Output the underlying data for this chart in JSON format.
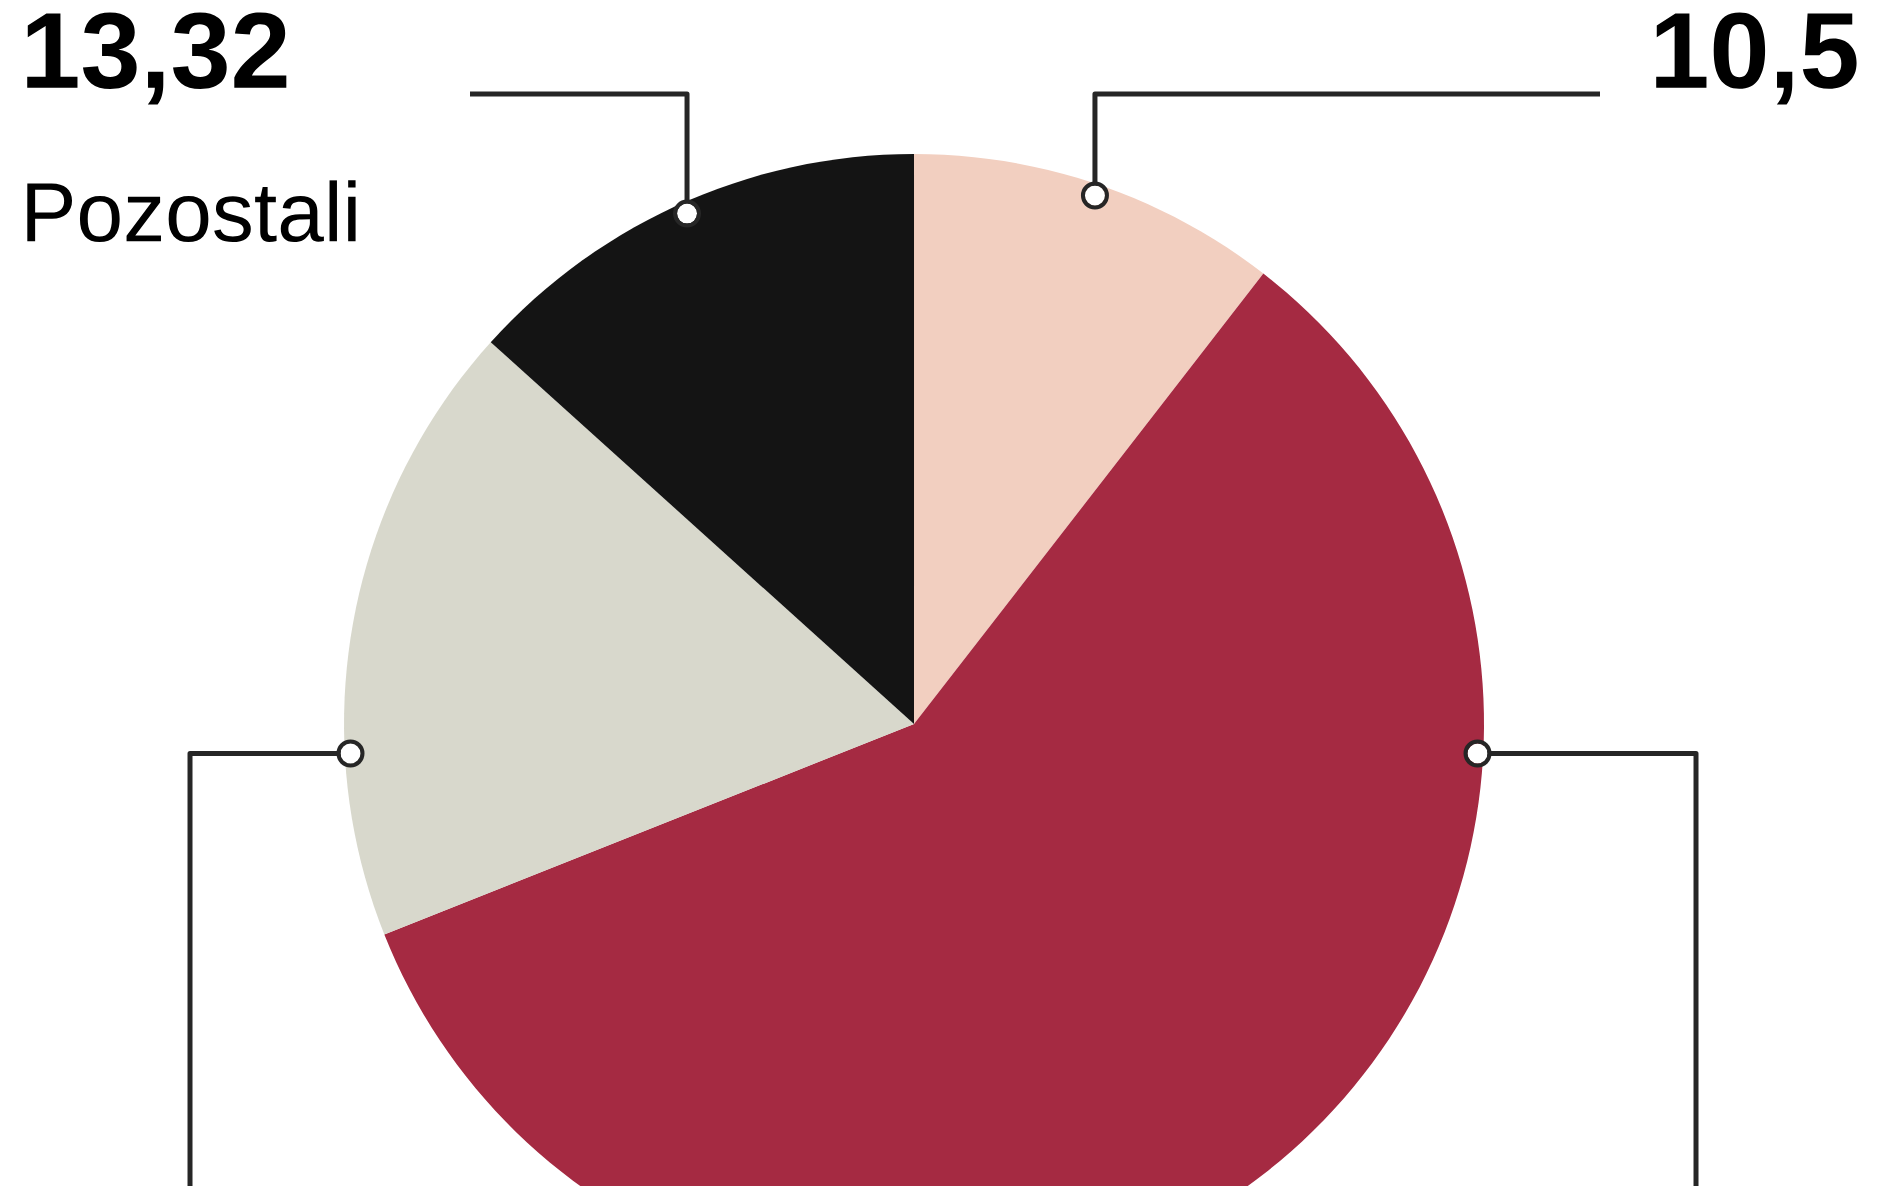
{
  "chart_data": {
    "type": "pie",
    "categories": [
      null,
      null,
      null,
      "Pozostali"
    ],
    "values": [
      10.5,
      58.48,
      17.7,
      13.32
    ],
    "colors": [
      "#f2cfc0",
      "#a52a42",
      "#d8d8cc",
      "#141414"
    ],
    "value_labels": [
      "10,5",
      null,
      null,
      "13,32"
    ]
  }
}
